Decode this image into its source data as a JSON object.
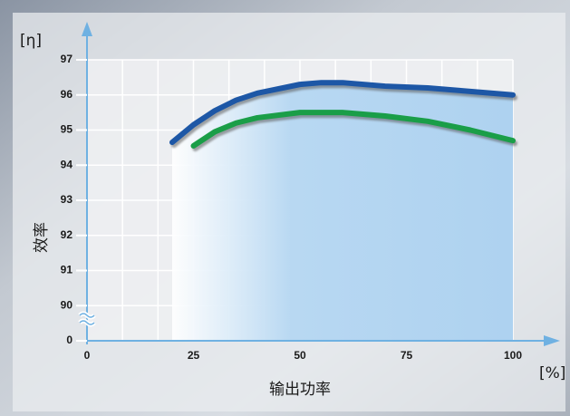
{
  "chart_data": {
    "type": "line",
    "ylabel": "效率",
    "yunit": "[η]",
    "xlabel": "输出功率",
    "xunit": "[%]",
    "xlim": [
      0,
      100
    ],
    "xticks": [
      0,
      25,
      50,
      75,
      100
    ],
    "ylim": [
      0,
      97
    ],
    "y_break": [
      0,
      90
    ],
    "yticks": [
      0,
      90,
      91,
      92,
      93,
      94,
      95,
      96,
      97
    ],
    "grid": true,
    "grid_subdivisions": 3,
    "area_under": 0,
    "series": [
      {
        "color": "#1d57a6",
        "x": [
          20,
          25,
          30,
          35,
          40,
          50,
          55,
          60,
          70,
          80,
          90,
          100
        ],
        "values": [
          94.65,
          95.15,
          95.55,
          95.85,
          96.05,
          96.3,
          96.35,
          96.35,
          96.25,
          96.2,
          96.1,
          96.0
        ]
      },
      {
        "color": "#1a9e48",
        "x": [
          25,
          30,
          35,
          40,
          50,
          60,
          70,
          80,
          90,
          100
        ],
        "values": [
          94.55,
          94.95,
          95.2,
          95.35,
          95.5,
          95.5,
          95.4,
          95.25,
          95.0,
          94.7
        ]
      }
    ]
  }
}
